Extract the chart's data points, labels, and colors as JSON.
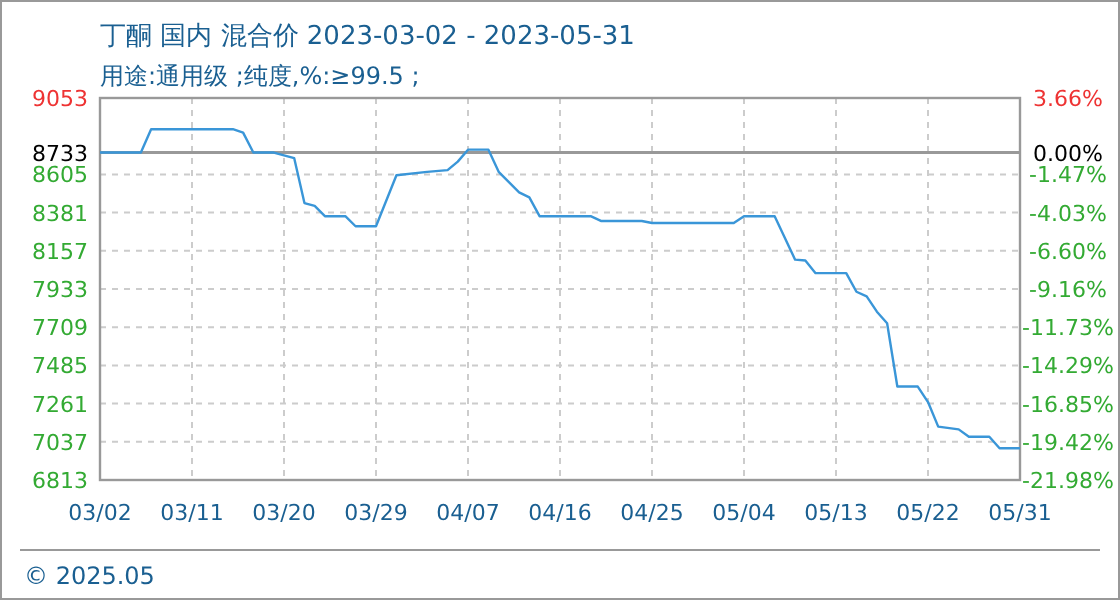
{
  "chart_data": {
    "type": "line",
    "title": "丁酮 国内 混合价 2023-03-02 - 2023-05-31",
    "subtitle": "用途:通用级 ;纯度,%:≥99.5 ;",
    "x": [
      "2023-03-02",
      "2023-03-06",
      "2023-03-07",
      "2023-03-15",
      "2023-03-16",
      "2023-03-17",
      "2023-03-19",
      "2023-03-21",
      "2023-03-22",
      "2023-03-23",
      "2023-03-24",
      "2023-03-26",
      "2023-03-27",
      "2023-03-29",
      "2023-03-31",
      "2023-04-03",
      "2023-04-05",
      "2023-04-06",
      "2023-04-07",
      "2023-04-09",
      "2023-04-10",
      "2023-04-11",
      "2023-04-12",
      "2023-04-13",
      "2023-04-14",
      "2023-04-19",
      "2023-04-20",
      "2023-04-24",
      "2023-04-25",
      "2023-05-03",
      "2023-05-04",
      "2023-05-07",
      "2023-05-09",
      "2023-05-10",
      "2023-05-11",
      "2023-05-14",
      "2023-05-15",
      "2023-05-16",
      "2023-05-17",
      "2023-05-18",
      "2023-05-19",
      "2023-05-21",
      "2023-05-22",
      "2023-05-23",
      "2023-05-25",
      "2023-05-26",
      "2023-05-28",
      "2023-05-29",
      "2023-05-31"
    ],
    "series": [
      {
        "color": "#3a96d8",
        "values": [
          8733,
          8733,
          8870,
          8870,
          8850,
          8733,
          8733,
          8700,
          8437,
          8420,
          8360,
          8360,
          8301,
          8301,
          8600,
          8620,
          8630,
          8680,
          8750,
          8750,
          8620,
          8560,
          8500,
          8470,
          8360,
          8360,
          8332,
          8332,
          8320,
          8320,
          8360,
          8360,
          8105,
          8100,
          8026,
          8026,
          7917,
          7890,
          7800,
          7732,
          7361,
          7361,
          7270,
          7126,
          7110,
          7067,
          7067,
          6999,
          6999
        ]
      }
    ],
    "xlim": [
      "2023-03-02",
      "2023-05-31"
    ],
    "xticks": [
      {
        "value": "2023-03-02",
        "label": "03/02"
      },
      {
        "value": "2023-03-11",
        "label": "03/11"
      },
      {
        "value": "2023-03-20",
        "label": "03/20"
      },
      {
        "value": "2023-03-29",
        "label": "03/29"
      },
      {
        "value": "2023-04-07",
        "label": "04/07"
      },
      {
        "value": "2023-04-16",
        "label": "04/16"
      },
      {
        "value": "2023-04-25",
        "label": "04/25"
      },
      {
        "value": "2023-05-04",
        "label": "05/04"
      },
      {
        "value": "2023-05-13",
        "label": "05/13"
      },
      {
        "value": "2023-05-22",
        "label": "05/22"
      },
      {
        "value": "2023-05-31",
        "label": "05/31"
      }
    ],
    "ylim": [
      6813,
      9053
    ],
    "yticks": [
      6813,
      7037,
      7261,
      7485,
      7709,
      7933,
      8157,
      8381,
      8605,
      8733,
      9053
    ],
    "y2lim": [
      -21.98,
      3.66
    ],
    "y2ticks": [
      {
        "value": -21.98,
        "label": "-21.98%"
      },
      {
        "value": -19.42,
        "label": "-19.42%"
      },
      {
        "value": -16.85,
        "label": "-16.85%"
      },
      {
        "value": -14.29,
        "label": "-14.29%"
      },
      {
        "value": -11.73,
        "label": "-11.73%"
      },
      {
        "value": -9.16,
        "label": "-9.16%"
      },
      {
        "value": -6.6,
        "label": "-6.60%"
      },
      {
        "value": -4.03,
        "label": "-4.03%"
      },
      {
        "value": -1.47,
        "label": "-1.47%"
      },
      {
        "value": 0,
        "label": "0.00%"
      },
      {
        "value": 3.66,
        "label": "3.66%"
      }
    ],
    "ref_lines": [
      {
        "axis": "y",
        "value": 8733,
        "color": "#999999"
      }
    ],
    "grid": true,
    "line_style": "solid",
    "marker": "none",
    "annotations": [
      "© 2025.05"
    ]
  }
}
